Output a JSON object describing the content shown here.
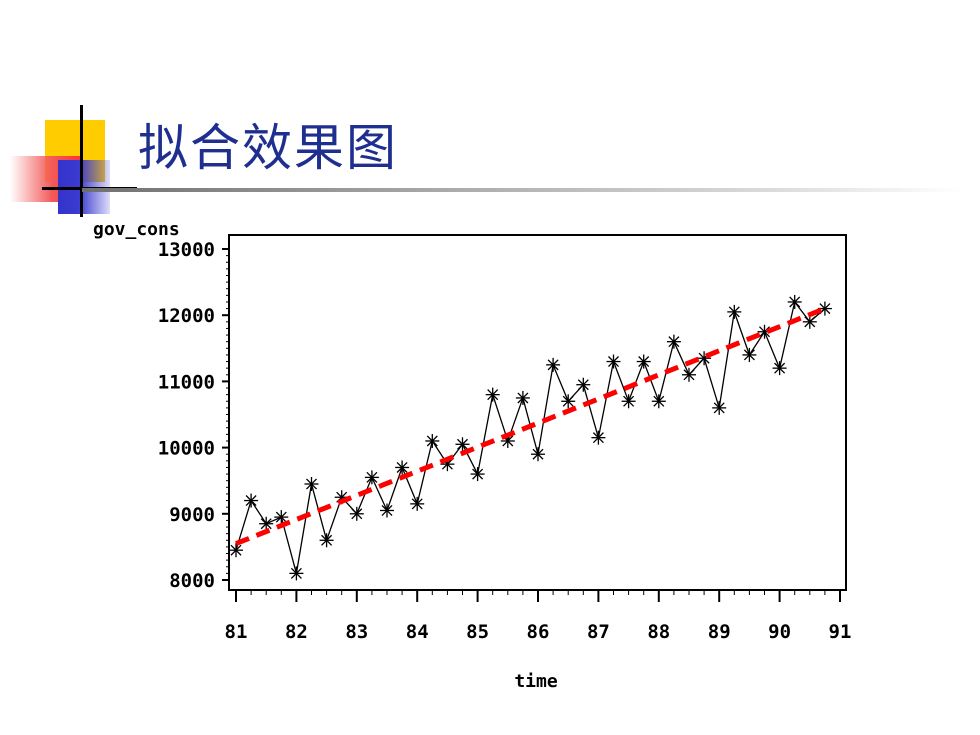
{
  "slide": {
    "title": "拟合效果图"
  },
  "chart_data": {
    "type": "line",
    "xlabel": "time",
    "ylabel": "gov_cons",
    "xlim": [
      81,
      91
    ],
    "ylim": [
      8000,
      13000
    ],
    "x_ticks": [
      81,
      82,
      83,
      84,
      85,
      86,
      87,
      88,
      89,
      90,
      91
    ],
    "y_ticks": [
      8000,
      9000,
      10000,
      11000,
      12000,
      13000
    ],
    "legend": "none",
    "grid": false,
    "colors": {
      "observed": "#000000",
      "fitted": "#ff0000"
    },
    "series": [
      {
        "style": "line-with-star-markers",
        "points": [
          [
            81.0,
            8450
          ],
          [
            81.25,
            9200
          ],
          [
            81.5,
            8850
          ],
          [
            81.75,
            8950
          ],
          [
            82.0,
            8100
          ],
          [
            82.25,
            9450
          ],
          [
            82.5,
            8600
          ],
          [
            82.75,
            9250
          ],
          [
            83.0,
            9000
          ],
          [
            83.25,
            9550
          ],
          [
            83.5,
            9050
          ],
          [
            83.75,
            9700
          ],
          [
            84.0,
            9150
          ],
          [
            84.25,
            10100
          ],
          [
            84.5,
            9750
          ],
          [
            84.75,
            10050
          ],
          [
            85.0,
            9600
          ],
          [
            85.25,
            10800
          ],
          [
            85.5,
            10100
          ],
          [
            85.75,
            10750
          ],
          [
            86.0,
            9900
          ],
          [
            86.25,
            11250
          ],
          [
            86.5,
            10700
          ],
          [
            86.75,
            10950
          ],
          [
            87.0,
            10150
          ],
          [
            87.25,
            11300
          ],
          [
            87.5,
            10700
          ],
          [
            87.75,
            11300
          ],
          [
            88.0,
            10700
          ],
          [
            88.25,
            11600
          ],
          [
            88.5,
            11100
          ],
          [
            88.75,
            11350
          ],
          [
            89.0,
            10600
          ],
          [
            89.25,
            12050
          ],
          [
            89.5,
            11400
          ],
          [
            89.75,
            11750
          ],
          [
            90.0,
            11200
          ],
          [
            90.25,
            12200
          ],
          [
            90.5,
            11900
          ],
          [
            90.75,
            12100
          ]
        ]
      },
      {
        "style": "dashed-line",
        "points": [
          [
            81.0,
            8550
          ],
          [
            90.75,
            12100
          ]
        ]
      }
    ]
  }
}
